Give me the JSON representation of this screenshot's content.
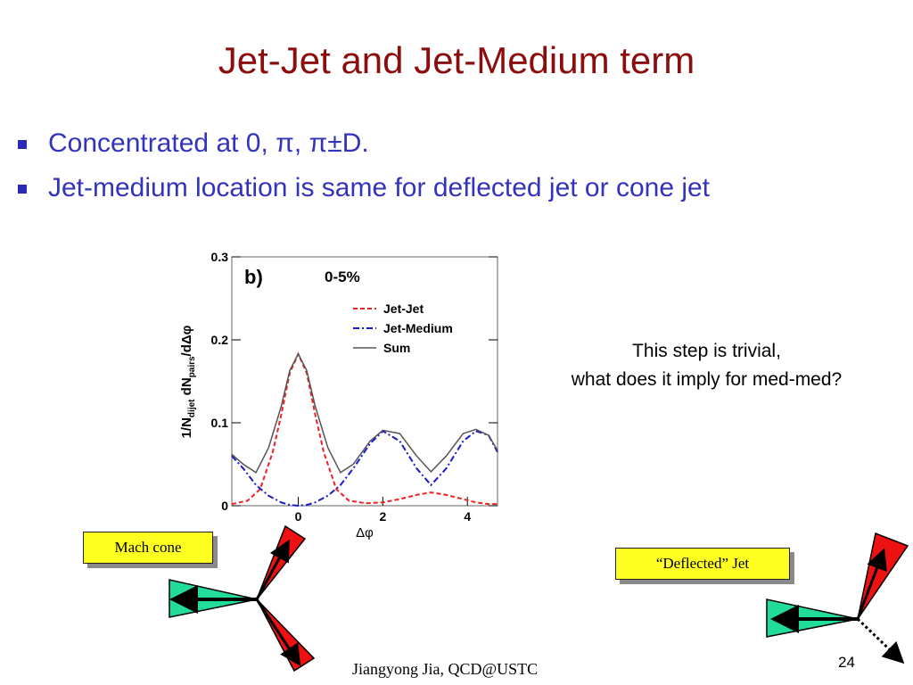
{
  "slide": {
    "title": "Jet-Jet and Jet-Medium term",
    "bullets": [
      "Concentrated at 0, π, π±D.",
      "Jet-medium location is same for deflected jet or cone jet"
    ],
    "note_line1": "This step is trivial,",
    "note_line2": "what does it imply for med-med?",
    "callout_mach": "Mach cone",
    "callout_deflected": "“Deflected” Jet",
    "footer": "Jiangyong Jia,  QCD@USTC",
    "page_number": "24"
  },
  "colors": {
    "title": "#8b0d0d",
    "bullets": "#3333bb",
    "callout_bg": "#ffff22",
    "jet_jet": "#ee2222",
    "jet_medium": "#1a1acc",
    "sum": "#555555",
    "cone_green": "#22dd99",
    "cone_red": "#ee1111"
  },
  "icons": {
    "bullet": "square-bullet-icon",
    "mach": "mach-cone-diagram",
    "deflected": "deflected-jet-diagram"
  },
  "chart_data": {
    "type": "line",
    "panel_label": "b)",
    "centrality_label": "0-5%",
    "xlabel": "Δφ",
    "ylabel": "1/N_dijet dN_pairs/dΔφ",
    "ylabel_main": "1/N",
    "ylabel_sub1": "dijet",
    "ylabel_mid": " dN",
    "ylabel_sub2": "pairs",
    "ylabel_end": "/dΔφ",
    "xlim": [
      -1.5708,
      4.7124
    ],
    "ylim": [
      0,
      0.3
    ],
    "x_ticks": [
      0,
      2,
      4
    ],
    "y_ticks": [
      0,
      0.1,
      0.2,
      0.3
    ],
    "y_tick_labels": [
      "0",
      "0.1",
      "0.2",
      "0.3"
    ],
    "legend_position": "top-right",
    "series": [
      {
        "name": "Jet-Jet",
        "style": "dashed",
        "x": [
          -1.57,
          -1.2,
          -0.9,
          -0.6,
          -0.4,
          -0.2,
          0,
          0.2,
          0.4,
          0.6,
          0.9,
          1.2,
          1.6,
          2,
          2.4,
          2.8,
          3.14,
          3.5,
          3.9,
          4.2,
          4.5,
          4.71
        ],
        "y": [
          0.002,
          0.006,
          0.02,
          0.065,
          0.11,
          0.16,
          0.183,
          0.16,
          0.11,
          0.065,
          0.02,
          0.006,
          0.003,
          0.004,
          0.008,
          0.013,
          0.016,
          0.013,
          0.008,
          0.004,
          0.002,
          0.002
        ]
      },
      {
        "name": "Jet-Medium",
        "style": "dash-dot",
        "x": [
          -1.57,
          -1.3,
          -1.0,
          -0.7,
          -0.4,
          -0.2,
          0,
          0.2,
          0.4,
          0.7,
          1.0,
          1.3,
          1.7,
          2.0,
          2.4,
          2.8,
          3.14,
          3.5,
          3.9,
          4.2,
          4.5,
          4.71
        ],
        "y": [
          0.06,
          0.045,
          0.025,
          0.012,
          0.004,
          0.001,
          0.0,
          0.001,
          0.004,
          0.012,
          0.025,
          0.045,
          0.075,
          0.09,
          0.078,
          0.045,
          0.025,
          0.045,
          0.078,
          0.09,
          0.085,
          0.065
        ]
      },
      {
        "name": "Sum",
        "style": "solid",
        "x": [
          -1.57,
          -1.3,
          -1.0,
          -0.7,
          -0.4,
          -0.2,
          0,
          0.2,
          0.4,
          0.7,
          1.0,
          1.3,
          1.7,
          2.0,
          2.4,
          2.8,
          3.14,
          3.5,
          3.9,
          4.2,
          4.5,
          4.71
        ],
        "y": [
          0.062,
          0.05,
          0.04,
          0.07,
          0.12,
          0.163,
          0.183,
          0.163,
          0.12,
          0.07,
          0.04,
          0.05,
          0.078,
          0.091,
          0.087,
          0.06,
          0.041,
          0.06,
          0.087,
          0.092,
          0.085,
          0.067
        ]
      }
    ]
  }
}
